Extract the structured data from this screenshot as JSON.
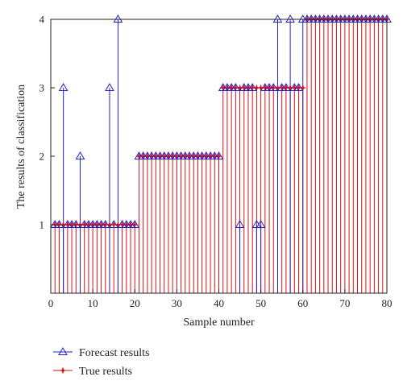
{
  "chart_data": {
    "type": "stem",
    "title": "",
    "xlabel": "Sample number",
    "ylabel": "The results of classification",
    "xlim": [
      0,
      80
    ],
    "ylim": [
      0,
      4
    ],
    "xticks": [
      0,
      10,
      20,
      30,
      40,
      50,
      60,
      70,
      80
    ],
    "yticks": [
      1,
      2,
      3,
      4
    ],
    "grid": false,
    "legend_position": "below",
    "x": [
      1,
      2,
      3,
      4,
      5,
      6,
      7,
      8,
      9,
      10,
      11,
      12,
      13,
      14,
      15,
      16,
      17,
      18,
      19,
      20,
      21,
      22,
      23,
      24,
      25,
      26,
      27,
      28,
      29,
      30,
      31,
      32,
      33,
      34,
      35,
      36,
      37,
      38,
      39,
      40,
      41,
      42,
      43,
      44,
      45,
      46,
      47,
      48,
      49,
      50,
      51,
      52,
      53,
      54,
      55,
      56,
      57,
      58,
      59,
      60,
      61,
      62,
      63,
      64,
      65,
      66,
      67,
      68,
      69,
      70,
      71,
      72,
      73,
      74,
      75,
      76,
      77,
      78,
      79,
      80
    ],
    "series": [
      {
        "name": "Forecast results",
        "color": "#2222cc",
        "marker": "triangle",
        "values": [
          1,
          1,
          3,
          1,
          1,
          1,
          2,
          1,
          1,
          1,
          1,
          1,
          1,
          3,
          1,
          4,
          1,
          1,
          1,
          1,
          2,
          2,
          2,
          2,
          2,
          2,
          2,
          2,
          2,
          2,
          2,
          2,
          2,
          2,
          2,
          2,
          2,
          2,
          2,
          2,
          3,
          3,
          3,
          3,
          1,
          3,
          3,
          3,
          1,
          1,
          3,
          3,
          3,
          4,
          3,
          3,
          4,
          3,
          3,
          4,
          4,
          4,
          4,
          4,
          4,
          4,
          4,
          4,
          4,
          4,
          4,
          4,
          4,
          4,
          4,
          4,
          4,
          4,
          4,
          4
        ]
      },
      {
        "name": "True results",
        "color": "#dd1111",
        "marker": "star",
        "values": [
          1,
          1,
          1,
          1,
          1,
          1,
          1,
          1,
          1,
          1,
          1,
          1,
          1,
          1,
          1,
          1,
          1,
          1,
          1,
          1,
          2,
          2,
          2,
          2,
          2,
          2,
          2,
          2,
          2,
          2,
          2,
          2,
          2,
          2,
          2,
          2,
          2,
          2,
          2,
          2,
          3,
          3,
          3,
          3,
          3,
          3,
          3,
          3,
          3,
          3,
          3,
          3,
          3,
          3,
          3,
          3,
          3,
          3,
          3,
          3,
          4,
          4,
          4,
          4,
          4,
          4,
          4,
          4,
          4,
          4,
          4,
          4,
          4,
          4,
          4,
          4,
          4,
          4,
          4,
          4
        ]
      }
    ]
  },
  "legend": {
    "forecast_label": "Forecast results",
    "true_label": "True results"
  }
}
